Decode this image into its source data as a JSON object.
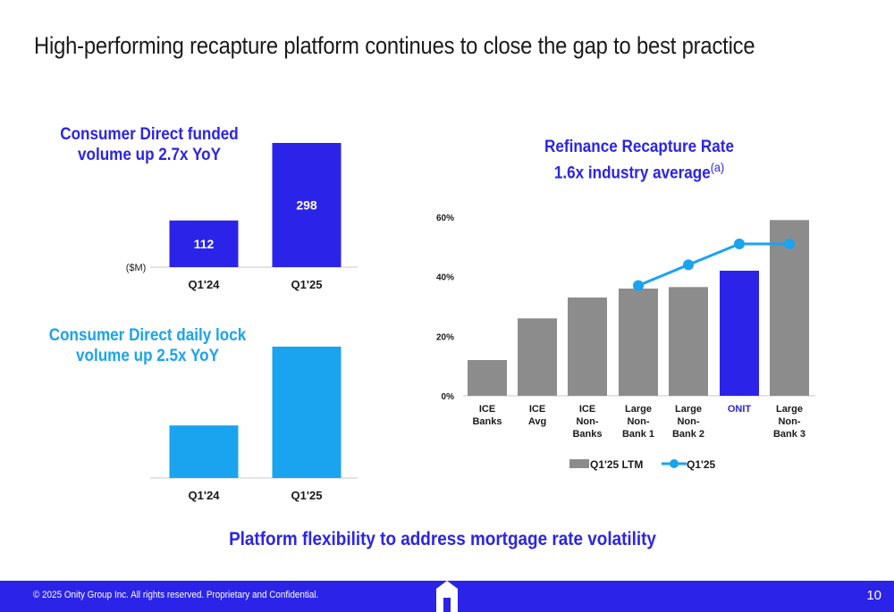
{
  "title": "High-performing recapture platform continues to close the gap to best practice",
  "funded_chart": {
    "heading_line1": "Consumer Direct funded",
    "heading_line2": "volume up 2.7x YoY",
    "unit_label": "($M)"
  },
  "lock_chart": {
    "heading_line1": "Consumer Direct daily lock",
    "heading_line2": "volume up 2.5x YoY"
  },
  "recapture_chart": {
    "heading_line1": "Refinance Recapture Rate",
    "heading_line2": "1.6x industry average",
    "heading_superscript": "(a)"
  },
  "tagline": "Platform flexibility to address mortgage rate volatility",
  "footer": {
    "copyright": "© 2025 Onity Group Inc. All rights reserved. Proprietary and Confidential.",
    "page_number": "10"
  },
  "colors": {
    "brand_blue": "#2b24e8",
    "cyan": "#1aa3ef",
    "gray_bar": "#8c8c8c"
  },
  "chart_data": [
    {
      "type": "bar",
      "title": "Consumer Direct funded volume up 2.7x YoY",
      "categories": [
        "Q1'24",
        "Q1'25"
      ],
      "values": [
        112,
        298
      ],
      "data_labels": [
        "112",
        "298"
      ],
      "ylabel": "($M)",
      "ylim": [
        0,
        298
      ],
      "color": "#2b24e8",
      "grid": false
    },
    {
      "type": "bar",
      "title": "Consumer Direct daily lock volume up 2.5x YoY",
      "categories": [
        "Q1'24",
        "Q1'25"
      ],
      "values": [
        1,
        2.5
      ],
      "ylim": [
        0,
        2.5
      ],
      "color": "#1aa3ef",
      "grid": false
    },
    {
      "type": "bar",
      "title": "Refinance Recapture Rate 1.6x industry average",
      "categories": [
        [
          "ICE",
          "Banks"
        ],
        [
          "ICE",
          "Avg"
        ],
        [
          "ICE",
          "Non-",
          "Banks"
        ],
        [
          "Large",
          "Non-",
          "Bank 1"
        ],
        [
          "Large",
          "Non-",
          "Bank 2"
        ],
        [
          "ONIT"
        ],
        [
          "Large",
          "Non-",
          "Bank 3"
        ]
      ],
      "highlight_index": 5,
      "ylim": [
        0,
        60
      ],
      "yticks": [
        0,
        20,
        40,
        60
      ],
      "ytick_labels": [
        "0%",
        "20%",
        "40%",
        "60%"
      ],
      "grid": false,
      "legend_position": "bottom",
      "series": [
        {
          "name": "Q1'25 LTM",
          "type": "bar",
          "color": "#8c8c8c",
          "highlight_color": "#2b24e8",
          "values": [
            12,
            26,
            33,
            36,
            36.5,
            42,
            59
          ]
        },
        {
          "name": "Q1'25",
          "type": "line",
          "color": "#1aa3ef",
          "values": [
            null,
            null,
            null,
            37,
            44,
            51,
            51
          ]
        }
      ]
    }
  ]
}
